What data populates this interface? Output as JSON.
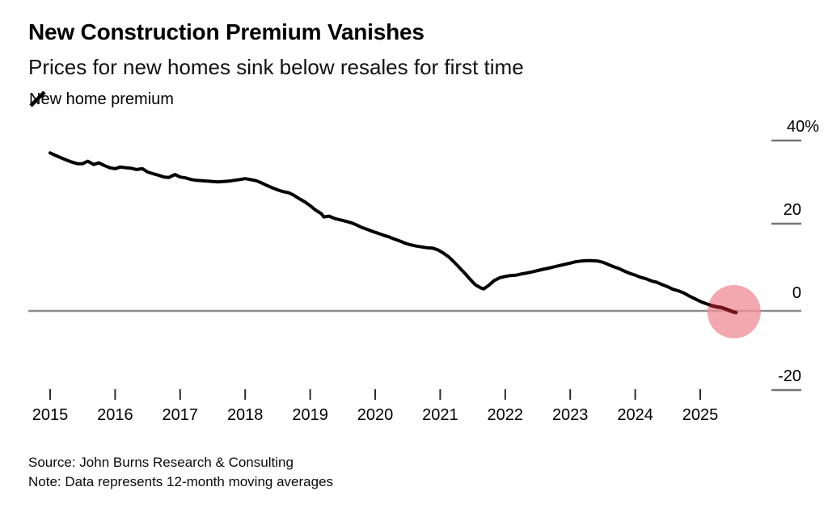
{
  "header": {
    "title": "New Construction Premium Vanishes",
    "subtitle": "Prices for new homes sink below resales for first time"
  },
  "legend": {
    "marker": "slash-icon",
    "label": "New home premium"
  },
  "footer": {
    "source": "Source: John Burns Research & Consulting",
    "note": "Note: Data represents 12-month moving averages"
  },
  "colors": {
    "line": "#000000",
    "line_highlight": "#701418",
    "highlight_circle": "#ef8e99",
    "zero_line": "#8c8c8c",
    "axis_tick": "#757575",
    "x_tick": "#2b2b2b",
    "text": "#000000"
  },
  "chart_data": {
    "type": "line",
    "title": "New Construction Premium Vanishes",
    "subtitle": "Prices for new homes sink below resales for first time",
    "xlabel": "",
    "ylabel": "New home premium (%)",
    "grid": "zero-line-only",
    "legend_position": "top-left",
    "xlim": [
      2014.9,
      2025.6
    ],
    "ylim": [
      -28,
      44
    ],
    "x_ticks": [
      "2015",
      "2016",
      "2017",
      "2018",
      "2019",
      "2020",
      "2021",
      "2022",
      "2023",
      "2024",
      "2025"
    ],
    "y_ticks": [
      {
        "value": 40,
        "label": "40",
        "suffix": "%"
      },
      {
        "value": 20,
        "label": "20",
        "suffix": ""
      },
      {
        "value": 0,
        "label": "0",
        "suffix": ""
      },
      {
        "value": -20,
        "label": "-20",
        "suffix": ""
      }
    ],
    "annotation": {
      "type": "circle",
      "x": 2025.52,
      "y": -0.2,
      "radius_px": 33,
      "meaning": "endpoint-highlight"
    },
    "highlight_from_x": 2025.17,
    "series": [
      {
        "name": "New home premium",
        "points": [
          [
            2015.0,
            38.0
          ],
          [
            2015.08,
            37.4
          ],
          [
            2015.17,
            36.8
          ],
          [
            2015.25,
            36.3
          ],
          [
            2015.33,
            35.8
          ],
          [
            2015.42,
            35.4
          ],
          [
            2015.5,
            35.4
          ],
          [
            2015.58,
            36.0
          ],
          [
            2015.67,
            35.2
          ],
          [
            2015.75,
            35.6
          ],
          [
            2015.83,
            35.0
          ],
          [
            2015.92,
            34.4
          ],
          [
            2016.0,
            34.2
          ],
          [
            2016.08,
            34.6
          ],
          [
            2016.17,
            34.4
          ],
          [
            2016.25,
            34.3
          ],
          [
            2016.33,
            34.0
          ],
          [
            2016.42,
            34.2
          ],
          [
            2016.5,
            33.4
          ],
          [
            2016.58,
            33.0
          ],
          [
            2016.67,
            32.6
          ],
          [
            2016.75,
            32.2
          ],
          [
            2016.83,
            32.1
          ],
          [
            2016.92,
            32.8
          ],
          [
            2017.0,
            32.2
          ],
          [
            2017.08,
            32.0
          ],
          [
            2017.17,
            31.6
          ],
          [
            2017.25,
            31.4
          ],
          [
            2017.33,
            31.3
          ],
          [
            2017.42,
            31.2
          ],
          [
            2017.5,
            31.1
          ],
          [
            2017.58,
            31.0
          ],
          [
            2017.67,
            31.1
          ],
          [
            2017.75,
            31.2
          ],
          [
            2017.83,
            31.4
          ],
          [
            2017.92,
            31.6
          ],
          [
            2018.0,
            31.8
          ],
          [
            2018.08,
            31.6
          ],
          [
            2018.17,
            31.3
          ],
          [
            2018.25,
            30.8
          ],
          [
            2018.33,
            30.2
          ],
          [
            2018.42,
            29.6
          ],
          [
            2018.5,
            29.1
          ],
          [
            2018.58,
            28.7
          ],
          [
            2018.67,
            28.4
          ],
          [
            2018.75,
            27.8
          ],
          [
            2018.83,
            27.0
          ],
          [
            2018.92,
            26.2
          ],
          [
            2019.0,
            25.3
          ],
          [
            2019.08,
            24.3
          ],
          [
            2019.17,
            23.4
          ],
          [
            2019.21,
            22.6
          ],
          [
            2019.29,
            22.8
          ],
          [
            2019.38,
            22.2
          ],
          [
            2019.46,
            21.9
          ],
          [
            2019.54,
            21.6
          ],
          [
            2019.63,
            21.2
          ],
          [
            2019.71,
            20.7
          ],
          [
            2019.79,
            20.1
          ],
          [
            2019.88,
            19.6
          ],
          [
            2019.96,
            19.1
          ],
          [
            2020.04,
            18.7
          ],
          [
            2020.13,
            18.2
          ],
          [
            2020.21,
            17.8
          ],
          [
            2020.29,
            17.3
          ],
          [
            2020.38,
            16.8
          ],
          [
            2020.46,
            16.3
          ],
          [
            2020.54,
            15.9
          ],
          [
            2020.63,
            15.6
          ],
          [
            2020.71,
            15.4
          ],
          [
            2020.79,
            15.2
          ],
          [
            2020.88,
            15.1
          ],
          [
            2020.96,
            14.7
          ],
          [
            2021.04,
            14.0
          ],
          [
            2021.13,
            13.0
          ],
          [
            2021.21,
            11.8
          ],
          [
            2021.29,
            10.5
          ],
          [
            2021.38,
            9.0
          ],
          [
            2021.46,
            7.6
          ],
          [
            2021.54,
            6.3
          ],
          [
            2021.63,
            5.5
          ],
          [
            2021.67,
            5.3
          ],
          [
            2021.75,
            6.2
          ],
          [
            2021.83,
            7.3
          ],
          [
            2021.92,
            8.0
          ],
          [
            2022.0,
            8.3
          ],
          [
            2022.08,
            8.5
          ],
          [
            2022.17,
            8.6
          ],
          [
            2022.25,
            8.9
          ],
          [
            2022.33,
            9.1
          ],
          [
            2022.42,
            9.4
          ],
          [
            2022.5,
            9.7
          ],
          [
            2022.58,
            10.0
          ],
          [
            2022.67,
            10.3
          ],
          [
            2022.75,
            10.6
          ],
          [
            2022.83,
            10.9
          ],
          [
            2022.92,
            11.2
          ],
          [
            2023.0,
            11.5
          ],
          [
            2023.08,
            11.8
          ],
          [
            2023.17,
            12.0
          ],
          [
            2023.25,
            12.1
          ],
          [
            2023.33,
            12.1
          ],
          [
            2023.42,
            12.0
          ],
          [
            2023.5,
            11.7
          ],
          [
            2023.58,
            11.2
          ],
          [
            2023.67,
            10.6
          ],
          [
            2023.75,
            10.2
          ],
          [
            2023.83,
            9.6
          ],
          [
            2023.92,
            9.0
          ],
          [
            2024.0,
            8.6
          ],
          [
            2024.08,
            8.1
          ],
          [
            2024.17,
            7.7
          ],
          [
            2024.25,
            7.2
          ],
          [
            2024.33,
            6.9
          ],
          [
            2024.42,
            6.3
          ],
          [
            2024.5,
            5.8
          ],
          [
            2024.58,
            5.2
          ],
          [
            2024.67,
            4.8
          ],
          [
            2024.75,
            4.3
          ],
          [
            2024.83,
            3.6
          ],
          [
            2024.92,
            2.9
          ],
          [
            2025.0,
            2.3
          ],
          [
            2025.08,
            1.8
          ],
          [
            2025.17,
            1.3
          ],
          [
            2025.25,
            1.0
          ],
          [
            2025.33,
            0.8
          ],
          [
            2025.42,
            0.3
          ],
          [
            2025.5,
            -0.2
          ],
          [
            2025.55,
            -0.4
          ]
        ]
      }
    ]
  }
}
